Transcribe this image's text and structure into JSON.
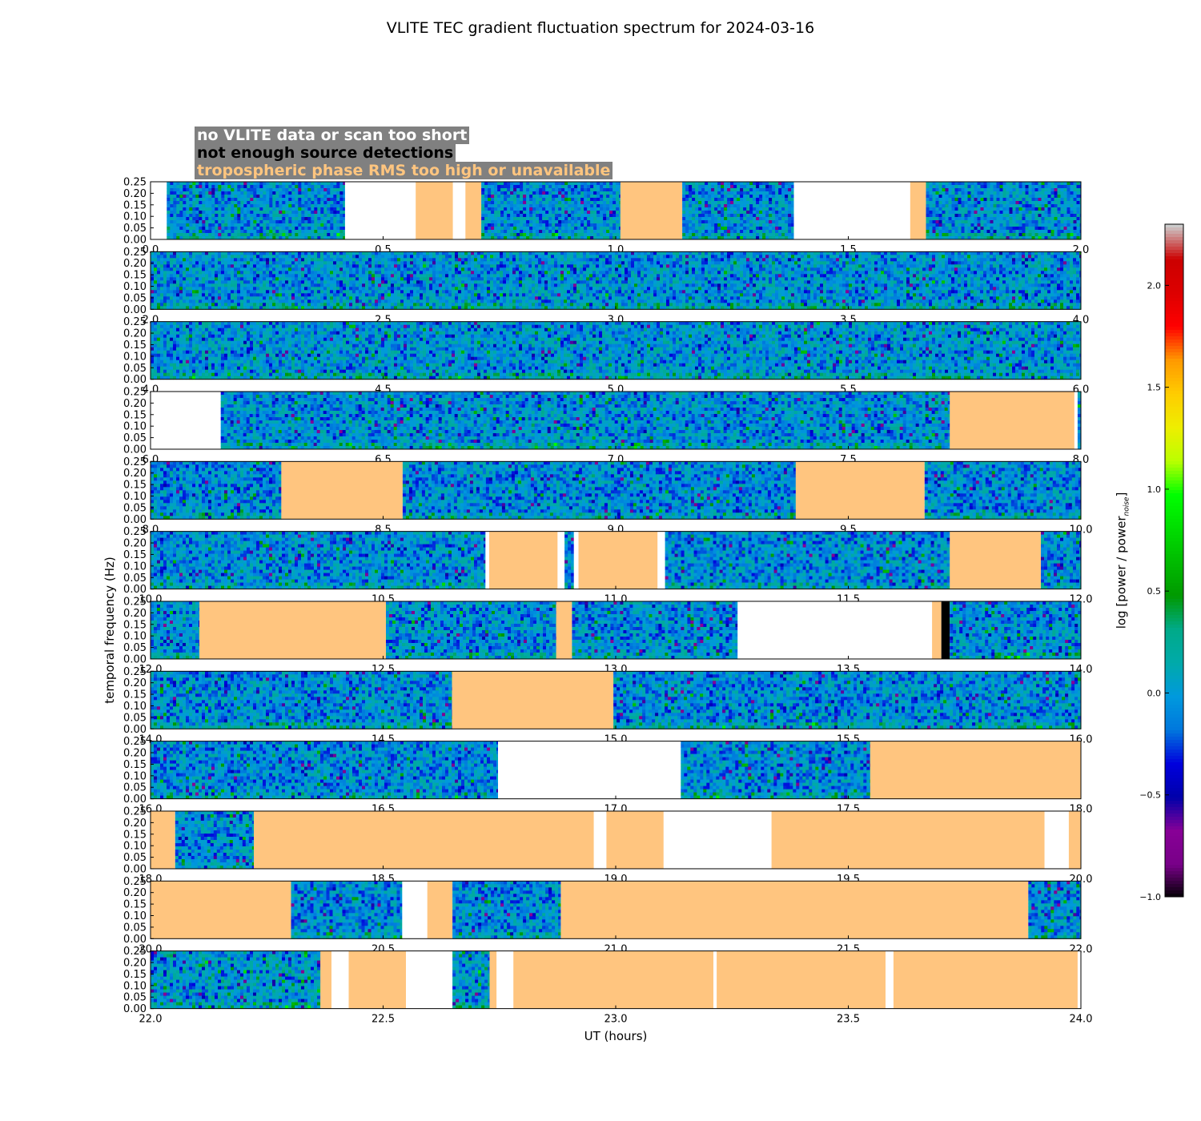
{
  "title": "VLITE TEC gradient fluctuation spectrum for 2024-03-16",
  "legend": [
    {
      "text": "no VLITE data or scan too short",
      "color": "#ffffff"
    },
    {
      "text": "not enough source detections",
      "color": "#000000"
    },
    {
      "text": "tropospheric phase RMS too high or unavailable",
      "color": "#ffc57f"
    }
  ],
  "ylabel": "temporal frequency (Hz)",
  "xlabel": "UT (hours)",
  "colorbar": {
    "label_main": "log [power / power",
    "label_sub": "noise",
    "label_end": "]",
    "min": -1.0,
    "max": 2.3,
    "ticks": [
      "2.0",
      "1.5",
      "1.0",
      "0.5",
      "0.0",
      "−0.5",
      "−1.0"
    ],
    "tick_values": [
      2.0,
      1.5,
      1.0,
      0.5,
      0.0,
      -0.5,
      -1.0
    ]
  },
  "chart_data": {
    "type": "heatmap",
    "colormap": "nipy_spectral",
    "y_ticks": [
      "0.00",
      "0.05",
      "0.10",
      "0.15",
      "0.20",
      "0.25"
    ],
    "y_tick_values": [
      0,
      0.05,
      0.1,
      0.15,
      0.2,
      0.25
    ],
    "ylim": [
      0,
      0.25
    ],
    "panels": [
      {
        "xlim": [
          0.0,
          2.0
        ],
        "xticks": [
          "0.0",
          "0.5",
          "1.0",
          "1.5",
          "2.0"
        ],
        "base": 0.05,
        "segments": [
          [
            "white",
            0.0,
            0.035
          ],
          [
            "data",
            0.035,
            0.418
          ],
          [
            "white",
            0.418,
            0.57
          ],
          [
            "orange",
            0.57,
            0.65
          ],
          [
            "white",
            0.65,
            0.677
          ],
          [
            "orange",
            0.677,
            0.711
          ],
          [
            "data",
            0.711,
            1.01
          ],
          [
            "orange",
            1.01,
            1.143
          ],
          [
            "data",
            1.143,
            1.383
          ],
          [
            "white",
            1.383,
            1.633
          ],
          [
            "orange",
            1.633,
            1.667
          ],
          [
            "data",
            1.667,
            2.0
          ]
        ]
      },
      {
        "xlim": [
          2.0,
          4.0
        ],
        "xticks": [
          "2.0",
          "2.5",
          "3.0",
          "3.5",
          "4.0"
        ],
        "base": 0.15,
        "segments": [
          [
            "data",
            2.0,
            4.0
          ]
        ]
      },
      {
        "xlim": [
          4.0,
          6.0
        ],
        "xticks": [
          "4.0",
          "4.5",
          "5.0",
          "5.5",
          "6.0"
        ],
        "base": 0.2,
        "segments": [
          [
            "data",
            4.0,
            6.0
          ]
        ]
      },
      {
        "xlim": [
          6.0,
          8.0
        ],
        "xticks": [
          "6.0",
          "6.5",
          "7.0",
          "7.5",
          "8.0"
        ],
        "base": 0.1,
        "segments": [
          [
            "white",
            6.0,
            6.151
          ],
          [
            "data",
            6.151,
            7.718
          ],
          [
            "orange",
            7.718,
            7.986
          ],
          [
            "white",
            7.986,
            7.993
          ],
          [
            "data",
            7.993,
            8.0
          ]
        ]
      },
      {
        "xlim": [
          8.0,
          10.0
        ],
        "xticks": [
          "8.0",
          "8.5",
          "9.0",
          "9.5",
          "10.0"
        ],
        "base": 0.0,
        "segments": [
          [
            "data",
            8.0,
            8.281
          ],
          [
            "orange",
            8.281,
            8.542
          ],
          [
            "data",
            8.542,
            9.387
          ],
          [
            "orange",
            9.387,
            9.664
          ],
          [
            "data",
            9.664,
            10.0
          ]
        ]
      },
      {
        "xlim": [
          10.0,
          12.0
        ],
        "xticks": [
          "10.0",
          "10.5",
          "11.0",
          "11.5",
          "12.0"
        ],
        "base": 0.05,
        "segments": [
          [
            "data",
            10.0,
            10.72
          ],
          [
            "white",
            10.72,
            10.728
          ],
          [
            "orange",
            10.728,
            10.875
          ],
          [
            "white",
            10.875,
            10.89
          ],
          [
            "data",
            10.89,
            10.91
          ],
          [
            "white",
            10.91,
            10.92
          ],
          [
            "orange",
            10.92,
            11.09
          ],
          [
            "white",
            11.09,
            11.106
          ],
          [
            "data",
            11.106,
            11.718
          ],
          [
            "orange",
            11.718,
            11.914
          ],
          [
            "data",
            11.914,
            12.0
          ]
        ]
      },
      {
        "xlim": [
          12.0,
          14.0
        ],
        "xticks": [
          "12.0",
          "12.5",
          "13.0",
          "13.5",
          "14.0"
        ],
        "base": 0.05,
        "segments": [
          [
            "data",
            12.0,
            12.105
          ],
          [
            "orange",
            12.105,
            12.506
          ],
          [
            "data",
            12.506,
            12.872
          ],
          [
            "orange",
            12.872,
            12.906
          ],
          [
            "data",
            12.906,
            13.262
          ],
          [
            "white",
            13.262,
            13.68
          ],
          [
            "orange",
            13.68,
            13.7
          ],
          [
            "black",
            13.7,
            13.718
          ],
          [
            "data",
            13.718,
            14.0
          ]
        ]
      },
      {
        "xlim": [
          14.0,
          16.0
        ],
        "xticks": [
          "14.0",
          "14.5",
          "15.0",
          "15.5",
          "16.0"
        ],
        "base": 0.05,
        "segments": [
          [
            "data",
            14.0,
            14.648
          ],
          [
            "orange",
            14.648,
            14.995
          ],
          [
            "data",
            14.995,
            16.0
          ]
        ]
      },
      {
        "xlim": [
          16.0,
          18.0
        ],
        "xticks": [
          "16.0",
          "16.5",
          "17.0",
          "17.5",
          "18.0"
        ],
        "base": 0.0,
        "segments": [
          [
            "data",
            16.0,
            16.747
          ],
          [
            "white",
            16.747,
            17.14
          ],
          [
            "data",
            17.14,
            17.547
          ],
          [
            "orange",
            17.547,
            18.0
          ]
        ]
      },
      {
        "xlim": [
          18.0,
          20.0
        ],
        "xticks": [
          "18.0",
          "18.5",
          "19.0",
          "19.5",
          "20.0"
        ],
        "base": 0.0,
        "segments": [
          [
            "orange",
            18.0,
            18.053
          ],
          [
            "data",
            18.053,
            18.222
          ],
          [
            "orange",
            18.222,
            18.953
          ],
          [
            "white",
            18.953,
            18.98
          ],
          [
            "orange",
            18.98,
            19.103
          ],
          [
            "white",
            19.103,
            19.335
          ],
          [
            "orange",
            19.335,
            19.922
          ],
          [
            "white",
            19.922,
            19.974
          ],
          [
            "orange",
            19.974,
            20.0
          ]
        ]
      },
      {
        "xlim": [
          20.0,
          22.0
        ],
        "xticks": [
          "20.0",
          "20.5",
          "21.0",
          "21.5",
          "22.0"
        ],
        "base": 0.0,
        "segments": [
          [
            "orange",
            20.0,
            20.302
          ],
          [
            "data",
            20.302,
            20.541
          ],
          [
            "white",
            20.541,
            20.595
          ],
          [
            "orange",
            20.595,
            20.649
          ],
          [
            "data",
            20.649,
            20.882
          ],
          [
            "orange",
            20.882,
            21.887
          ],
          [
            "data",
            21.887,
            22.0
          ]
        ]
      },
      {
        "xlim": [
          22.0,
          24.0
        ],
        "xticks": [
          "22.0",
          "22.5",
          "23.0",
          "23.5",
          "24.0"
        ],
        "base": 0.3,
        "segments": [
          [
            "data",
            22.0,
            22.365
          ],
          [
            "orange",
            22.365,
            22.389
          ],
          [
            "white",
            22.389,
            22.426
          ],
          [
            "orange",
            22.426,
            22.549
          ],
          [
            "white",
            22.549,
            22.649
          ],
          [
            "data",
            22.649,
            22.729
          ],
          [
            "orange",
            22.729,
            22.744
          ],
          [
            "white",
            22.744,
            22.78
          ],
          [
            "orange",
            22.78,
            23.21
          ],
          [
            "white",
            23.21,
            23.217
          ],
          [
            "orange",
            23.217,
            23.58
          ],
          [
            "white",
            23.58,
            23.597
          ],
          [
            "orange",
            23.597,
            23.993
          ],
          [
            "white",
            23.993,
            24.0
          ]
        ]
      }
    ]
  }
}
